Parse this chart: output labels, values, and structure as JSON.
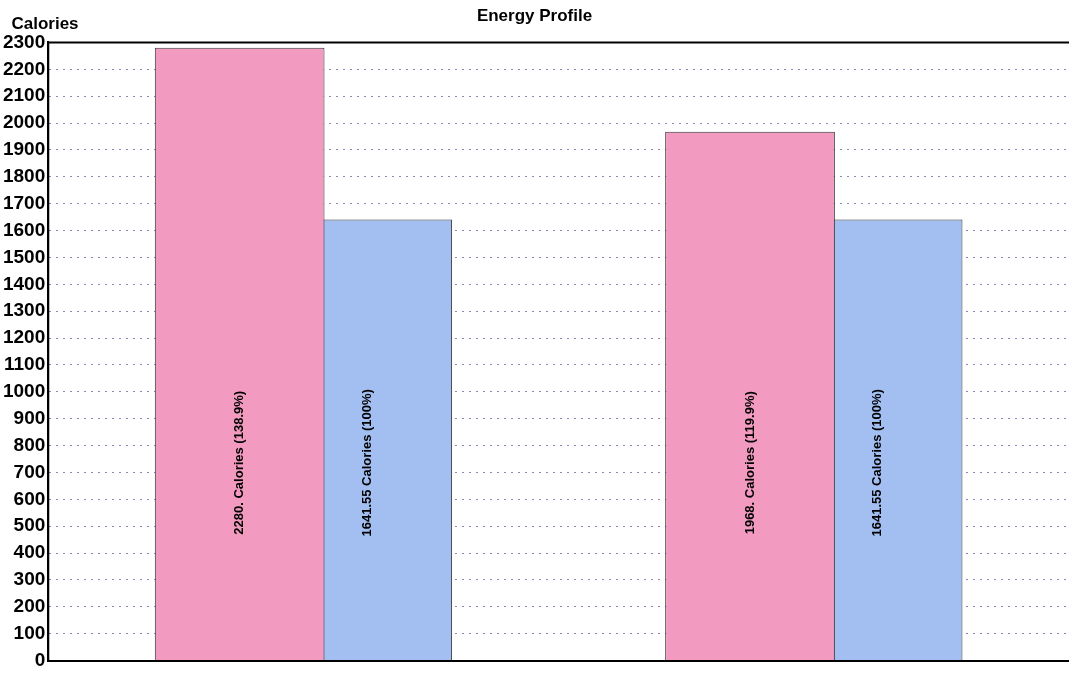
{
  "chart_data": {
    "type": "bar",
    "title": "Energy Profile",
    "ylabel": "Calories",
    "categories": [
      null,
      null
    ],
    "series": [
      {
        "color": "#f29ac0",
        "values": [
          2280,
          1968
        ],
        "value_labels": [
          "2280. Calories (138.9%)",
          "1968. Calories (119.9%)"
        ]
      },
      {
        "color": "#a3bff2",
        "values": [
          1641.55,
          1641.55
        ],
        "value_labels": [
          "1641.55 Calories (100%)",
          "1641.55 Calories (100%)"
        ]
      }
    ],
    "ylim": [
      0,
      2300
    ],
    "yticks": [
      0,
      100,
      200,
      300,
      400,
      500,
      600,
      700,
      800,
      900,
      1000,
      1100,
      1200,
      1300,
      1400,
      1500,
      1600,
      1700,
      1800,
      1900,
      2000,
      2100,
      2200,
      2300
    ],
    "grid": "y",
    "legend": false
  }
}
